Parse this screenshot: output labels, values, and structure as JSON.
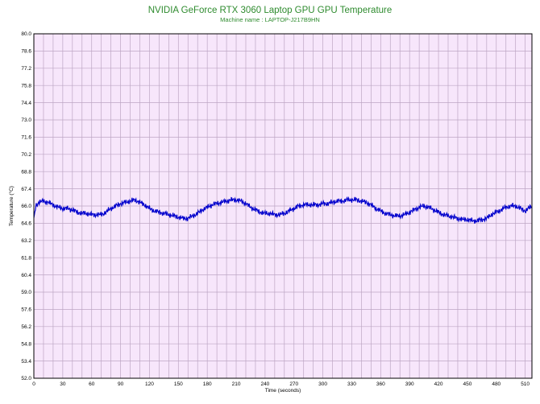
{
  "chart_data": {
    "type": "line",
    "title": "NVIDIA GeForce RTX 3060 Laptop GPU GPU Temperature",
    "subtitle": "Machine name : LAPTOP-J217B9HN",
    "xlabel": "Time (seconds)",
    "ylabel": "Temperature (°C)",
    "xlim": [
      0,
      517
    ],
    "ylim": [
      52.0,
      80.0
    ],
    "grid": true,
    "xticks": [
      0,
      30,
      60,
      90,
      120,
      150,
      180,
      210,
      240,
      270,
      300,
      330,
      360,
      390,
      420,
      450,
      480,
      510
    ],
    "yticks": [
      "52.0",
      "53.4",
      "54.8",
      "56.2",
      "57.6",
      "59.0",
      "60.4",
      "61.8",
      "63.2",
      "64.6",
      "66.0",
      "67.4",
      "68.8",
      "70.2",
      "71.6",
      "73.0",
      "74.4",
      "75.8",
      "77.2",
      "78.6",
      "80.0"
    ],
    "colors": {
      "line": "#0000cc",
      "plot_bg": "#f7e6fb",
      "grid": "#bda6c4",
      "title": "#2e8b2e"
    },
    "series": [
      {
        "x": [
          0,
          2,
          5,
          10,
          15,
          20,
          25,
          30,
          35,
          40,
          45,
          50,
          55,
          60,
          65,
          70,
          75,
          80,
          85,
          90,
          95,
          100,
          105,
          110,
          115,
          120,
          125,
          130,
          135,
          140,
          145,
          150,
          155,
          160,
          165,
          170,
          175,
          180,
          185,
          190,
          195,
          200,
          205,
          210,
          215,
          220,
          225,
          230,
          235,
          240,
          245,
          250,
          255,
          260,
          265,
          270,
          275,
          280,
          285,
          290,
          295,
          300,
          305,
          310,
          315,
          320,
          325,
          330,
          335,
          340,
          345,
          350,
          355,
          360,
          365,
          370,
          375,
          380,
          385,
          390,
          395,
          400,
          405,
          410,
          415,
          420,
          425,
          430,
          435,
          440,
          445,
          450,
          455,
          460,
          465,
          470,
          475,
          480,
          485,
          490,
          495,
          500,
          505,
          510,
          515,
          517
        ],
        "values": [
          64.9,
          66.0,
          66.3,
          66.4,
          66.3,
          66.1,
          65.9,
          65.8,
          65.8,
          65.7,
          65.5,
          65.4,
          65.4,
          65.3,
          65.3,
          65.3,
          65.5,
          65.8,
          66.0,
          66.2,
          66.3,
          66.4,
          66.5,
          66.3,
          66.1,
          65.8,
          65.6,
          65.5,
          65.4,
          65.3,
          65.2,
          65.1,
          65.0,
          65.0,
          65.2,
          65.4,
          65.7,
          65.9,
          66.1,
          66.2,
          66.3,
          66.4,
          66.5,
          66.5,
          66.4,
          66.2,
          65.9,
          65.7,
          65.5,
          65.4,
          65.4,
          65.3,
          65.3,
          65.4,
          65.6,
          65.8,
          66.0,
          66.1,
          66.1,
          66.1,
          66.1,
          66.2,
          66.2,
          66.3,
          66.4,
          66.4,
          66.5,
          66.5,
          66.5,
          66.4,
          66.3,
          66.1,
          65.8,
          65.6,
          65.4,
          65.3,
          65.2,
          65.2,
          65.3,
          65.5,
          65.7,
          65.9,
          66.0,
          65.9,
          65.7,
          65.5,
          65.3,
          65.2,
          65.1,
          65.0,
          64.9,
          64.9,
          64.8,
          64.8,
          64.9,
          65.0,
          65.3,
          65.5,
          65.7,
          65.9,
          66.0,
          66.0,
          65.8,
          65.6,
          65.9,
          66.0
        ]
      }
    ]
  }
}
